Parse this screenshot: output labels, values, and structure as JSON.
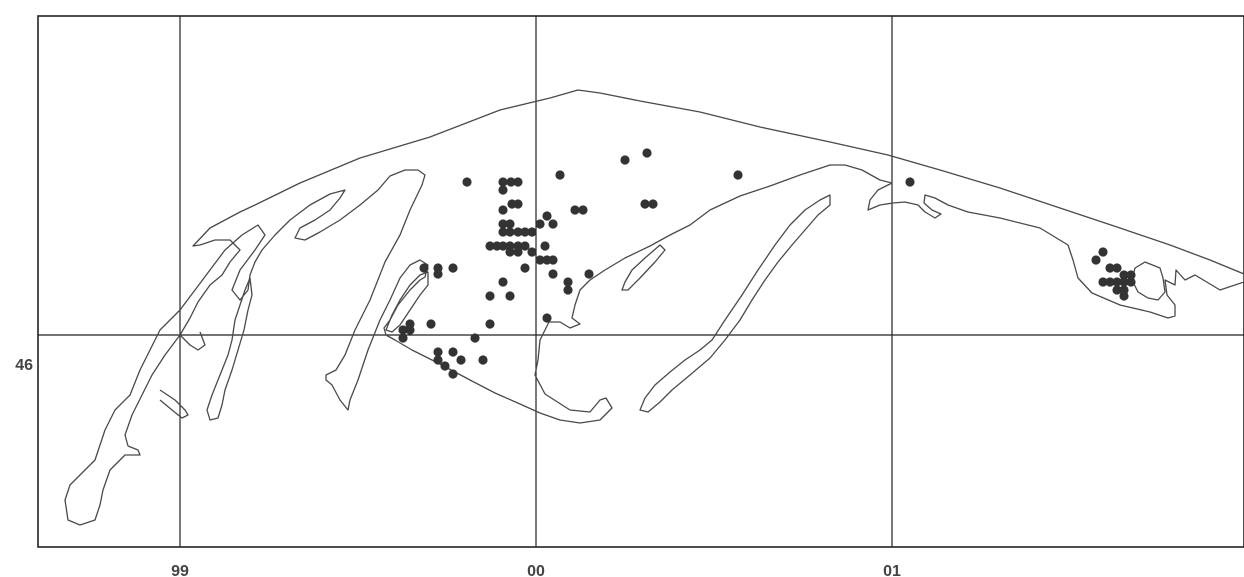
{
  "map": {
    "colors": {
      "background": "#ffffff",
      "outline": "#4a4a4a",
      "grid": "#222222",
      "point": "#333333",
      "label": "#444444"
    },
    "x_axis_labels": [
      "99",
      "00",
      "01"
    ],
    "y_axis_labels": [
      "46"
    ]
  }
}
